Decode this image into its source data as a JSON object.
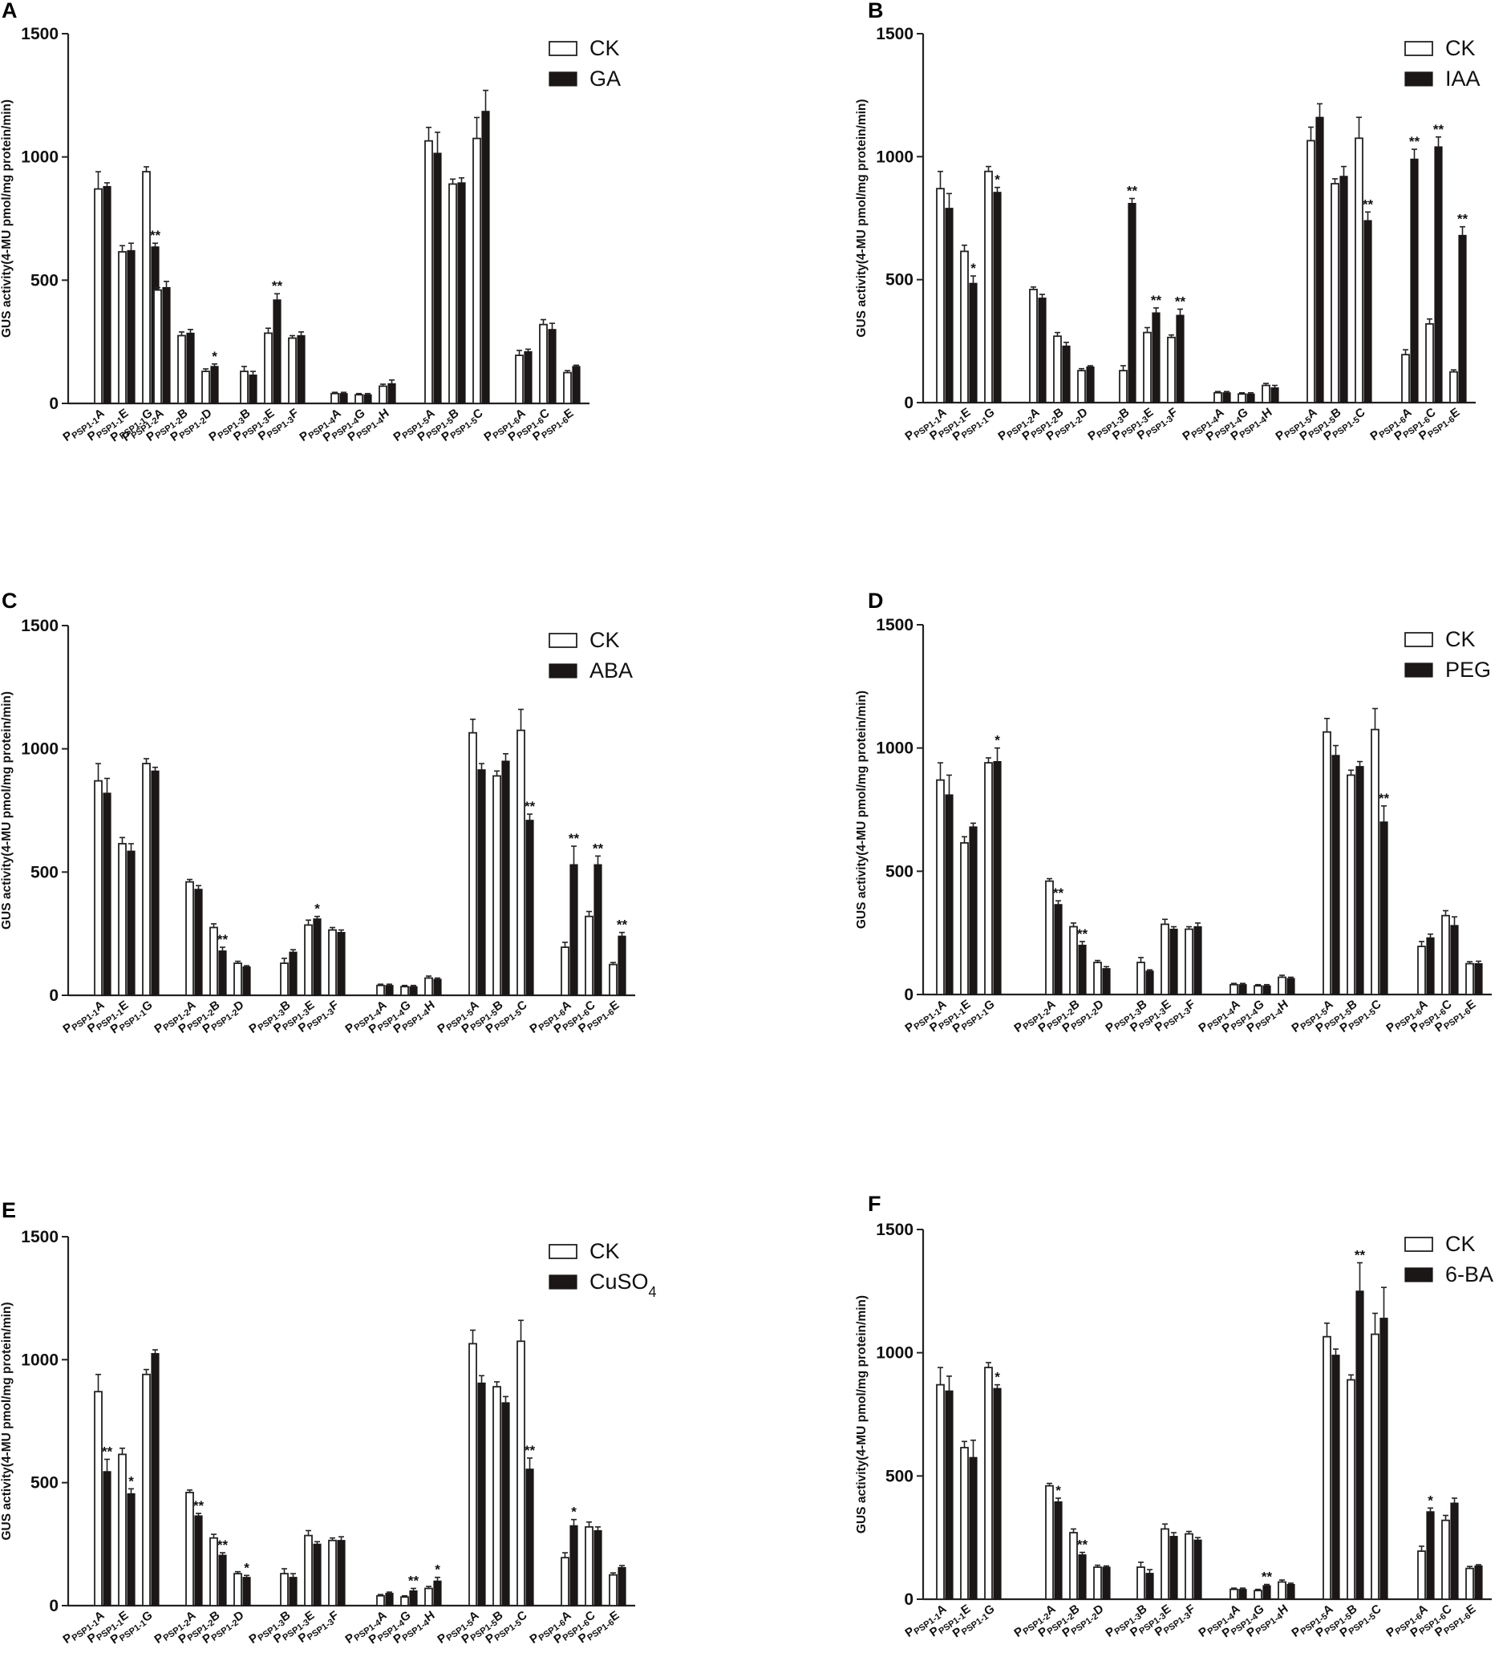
{
  "chart_data": [
    {
      "panel": "A",
      "type": "bar",
      "ylabel": "GUS activity(4-MU pmol/mg protein/min)",
      "ylim": [
        0,
        1500
      ],
      "yticks": [
        0,
        500,
        1000,
        1500
      ],
      "legend": [
        "CK",
        "GA"
      ],
      "legend_position": "top-right",
      "categories": [
        "PSP1-1A",
        "PSP1-1E",
        "PSP1-1G",
        "PSP1-2A",
        "PSP1-2B",
        "PSP1-2D",
        "PSP1-3B",
        "PSP1-3E",
        "PSP1-3F",
        "PSP1-4A",
        "PSP1-4G",
        "PSP1-4H",
        "PSP1-5A",
        "PSP1-5B",
        "PSP1-5C",
        "PSP1-6A",
        "PSP1-6C",
        "PSP1-6E"
      ],
      "series": [
        {
          "name": "CK",
          "values": [
            870,
            615,
            940,
            460,
            275,
            130,
            130,
            285,
            265,
            40,
            35,
            70,
            1065,
            890,
            1075,
            195,
            320,
            125
          ],
          "errors": [
            70,
            25,
            20,
            10,
            15,
            10,
            20,
            20,
            10,
            5,
            5,
            8,
            55,
            20,
            85,
            20,
            20,
            8
          ]
        },
        {
          "name": "GA",
          "values": [
            880,
            620,
            635,
            470,
            285,
            150,
            115,
            420,
            275,
            40,
            35,
            80,
            1015,
            895,
            1185,
            210,
            300,
            150
          ],
          "errors": [
            15,
            30,
            15,
            25,
            15,
            10,
            15,
            25,
            15,
            5,
            5,
            15,
            85,
            20,
            85,
            10,
            25,
            5
          ]
        }
      ],
      "annotations": [
        "",
        "",
        "**",
        "",
        "",
        "*",
        "",
        "**",
        "",
        "",
        "",
        "",
        "",
        "",
        "",
        "",
        "",
        ""
      ]
    },
    {
      "panel": "B",
      "type": "bar",
      "ylabel": "GUS activity(4-MU pmol/mg protein/min)",
      "ylim": [
        0,
        1500
      ],
      "yticks": [
        0,
        500,
        1000,
        1500
      ],
      "legend": [
        "CK",
        "IAA"
      ],
      "legend_position": "top-right",
      "categories": [
        "PSP1-1A",
        "PSP1-1E",
        "PSP1-1G",
        "PSP1-2A",
        "PSP1-2B",
        "PSP1-2D",
        "PSP1-3B",
        "PSP1-3E",
        "PSP1-3F",
        "PSP1-4A",
        "PSP1-4G",
        "PSP1-4H",
        "PSP1-5A",
        "PSP1-5B",
        "PSP1-5C",
        "PSP1-6A",
        "PSP1-6C",
        "PSP1-6E"
      ],
      "series": [
        {
          "name": "CK",
          "values": [
            870,
            615,
            940,
            460,
            270,
            130,
            130,
            285,
            265,
            40,
            35,
            70,
            1065,
            890,
            1075,
            195,
            320,
            125
          ],
          "errors": [
            70,
            25,
            20,
            10,
            15,
            8,
            20,
            20,
            10,
            5,
            5,
            8,
            55,
            20,
            85,
            20,
            20,
            8
          ]
        },
        {
          "name": "IAA",
          "values": [
            790,
            485,
            855,
            425,
            230,
            145,
            810,
            365,
            355,
            40,
            35,
            60,
            1160,
            920,
            740,
            990,
            1040,
            680
          ],
          "errors": [
            60,
            30,
            20,
            15,
            15,
            5,
            20,
            20,
            25,
            5,
            5,
            10,
            55,
            40,
            35,
            40,
            40,
            35
          ]
        }
      ],
      "annotations": [
        "",
        "*",
        "*",
        "",
        "",
        "",
        "**",
        "**",
        "**",
        "",
        "",
        "",
        "",
        "",
        "**",
        "**",
        "**",
        "**"
      ]
    },
    {
      "panel": "C",
      "type": "bar",
      "ylabel": "GUS activity(4-MU pmol/mg protein/min)",
      "ylim": [
        0,
        1500
      ],
      "yticks": [
        0,
        500,
        1000,
        1500
      ],
      "legend": [
        "CK",
        "ABA"
      ],
      "legend_position": "top-right",
      "categories": [
        "PSP1-1A",
        "PSP1-1E",
        "PSP1-1G",
        "PSP1-2A",
        "PSP1-2B",
        "PSP1-2D",
        "PSP1-3B",
        "PSP1-3E",
        "PSP1-3F",
        "PSP1-4A",
        "PSP1-4G",
        "PSP1-4H",
        "PSP1-5A",
        "PSP1-5B",
        "PSP1-5C",
        "PSP1-6A",
        "PSP1-6C",
        "PSP1-6E"
      ],
      "series": [
        {
          "name": "CK",
          "values": [
            870,
            615,
            940,
            460,
            275,
            130,
            130,
            285,
            265,
            40,
            35,
            70,
            1065,
            890,
            1075,
            195,
            320,
            125
          ],
          "errors": [
            70,
            25,
            20,
            10,
            15,
            8,
            20,
            20,
            10,
            5,
            5,
            8,
            55,
            20,
            85,
            20,
            20,
            8
          ]
        },
        {
          "name": "ABA",
          "values": [
            820,
            585,
            910,
            430,
            180,
            115,
            175,
            310,
            255,
            40,
            35,
            65,
            915,
            950,
            710,
            530,
            530,
            240
          ],
          "errors": [
            60,
            30,
            15,
            15,
            15,
            5,
            10,
            10,
            10,
            5,
            5,
            5,
            25,
            30,
            25,
            75,
            35,
            15
          ]
        }
      ],
      "annotations": [
        "",
        "",
        "",
        "",
        "**",
        "",
        "",
        "*",
        "",
        "",
        "",
        "",
        "",
        "",
        "**",
        "**",
        "**",
        "**"
      ]
    },
    {
      "panel": "D",
      "type": "bar",
      "ylabel": "GUS activity(4-MU pmol/mg protein/min)",
      "ylim": [
        0,
        1500
      ],
      "yticks": [
        0,
        500,
        1000,
        1500
      ],
      "legend": [
        "CK",
        "PEG"
      ],
      "legend_position": "top-right",
      "categories": [
        "PSP1-1A",
        "PSP1-1E",
        "PSP1-1G",
        "PSP1-2A",
        "PSP1-2B",
        "PSP1-2D",
        "PSP1-3B",
        "PSP1-3E",
        "PSP1-3F",
        "PSP1-4A",
        "PSP1-4G",
        "PSP1-4H",
        "PSP1-5A",
        "PSP1-5B",
        "PSP1-5C",
        "PSP1-6A",
        "PSP1-6C",
        "PSP1-6E"
      ],
      "series": [
        {
          "name": "CK",
          "values": [
            870,
            615,
            940,
            460,
            275,
            130,
            130,
            285,
            265,
            40,
            35,
            70,
            1065,
            890,
            1075,
            195,
            320,
            125
          ],
          "errors": [
            70,
            25,
            20,
            10,
            15,
            8,
            20,
            20,
            10,
            5,
            5,
            8,
            55,
            20,
            85,
            20,
            20,
            8
          ]
        },
        {
          "name": "PEG",
          "values": [
            810,
            680,
            945,
            365,
            200,
            105,
            95,
            265,
            275,
            40,
            35,
            65,
            970,
            925,
            700,
            230,
            280,
            125
          ],
          "errors": [
            80,
            15,
            55,
            15,
            15,
            8,
            5,
            10,
            15,
            5,
            5,
            5,
            40,
            20,
            65,
            15,
            35,
            10
          ]
        }
      ],
      "annotations": [
        "",
        "",
        "*",
        "**",
        "**",
        "",
        "",
        "",
        "",
        "",
        "",
        "",
        "",
        "",
        "**",
        "",
        "",
        ""
      ]
    },
    {
      "panel": "E",
      "type": "bar",
      "ylabel": "GUS activity(4-MU pmol/mg protein/min)",
      "ylim": [
        0,
        1500
      ],
      "yticks": [
        0,
        500,
        1000,
        1500
      ],
      "legend": [
        "CK",
        "CuSO4"
      ],
      "legend_position": "top-right",
      "categories": [
        "PSP1-1A",
        "PSP1-1E",
        "PSP1-1G",
        "PSP1-2A",
        "PSP1-2B",
        "PSP1-2D",
        "PSP1-3B",
        "PSP1-3E",
        "PSP1-3F",
        "PSP1-4A",
        "PSP1-4G",
        "PSP1-4H",
        "PSP1-5A",
        "PSP1-5B",
        "PSP1-5C",
        "PSP1-6A",
        "PSP1-6C",
        "PSP1-6E"
      ],
      "series": [
        {
          "name": "CK",
          "values": [
            870,
            615,
            940,
            460,
            275,
            130,
            130,
            285,
            265,
            40,
            35,
            70,
            1065,
            890,
            1075,
            195,
            320,
            125
          ],
          "errors": [
            70,
            25,
            20,
            10,
            15,
            8,
            20,
            20,
            10,
            5,
            5,
            8,
            55,
            20,
            85,
            20,
            20,
            8
          ]
        },
        {
          "name": "CuSO4",
          "values": [
            545,
            455,
            1025,
            365,
            205,
            115,
            115,
            250,
            265,
            50,
            60,
            100,
            905,
            825,
            555,
            325,
            305,
            155
          ],
          "errors": [
            50,
            20,
            15,
            10,
            10,
            8,
            15,
            10,
            15,
            5,
            10,
            15,
            30,
            25,
            45,
            25,
            15,
            8
          ]
        }
      ],
      "annotations": [
        "**",
        "*",
        "",
        "**",
        "**",
        "*",
        "",
        "",
        "",
        "",
        "**",
        "*",
        "",
        "",
        "**",
        "*",
        "",
        ""
      ]
    },
    {
      "panel": "F",
      "type": "bar",
      "ylabel": "GUS activity(4-MU pmol/mg protein/min)",
      "ylim": [
        0,
        1500
      ],
      "yticks": [
        0,
        500,
        1000,
        1500
      ],
      "legend": [
        "CK",
        "6-BA"
      ],
      "legend_position": "top-right",
      "categories": [
        "PSP1-1A",
        "PSP1-1E",
        "PSP1-1G",
        "PSP1-2A",
        "PSP1-2B",
        "PSP1-2D",
        "PSP1-3B",
        "PSP1-3E",
        "PSP1-3F",
        "PSP1-4A",
        "PSP1-4G",
        "PSP1-4H",
        "PSP1-5A",
        "PSP1-5B",
        "PSP1-5C",
        "PSP1-6A",
        "PSP1-6C",
        "PSP1-6E"
      ],
      "series": [
        {
          "name": "CK",
          "values": [
            870,
            615,
            940,
            460,
            270,
            130,
            130,
            285,
            265,
            40,
            35,
            70,
            1065,
            890,
            1075,
            195,
            320,
            125
          ],
          "errors": [
            70,
            25,
            20,
            10,
            15,
            8,
            20,
            20,
            10,
            5,
            5,
            8,
            55,
            20,
            85,
            20,
            20,
            8
          ]
        },
        {
          "name": "6-BA",
          "values": [
            845,
            575,
            855,
            395,
            180,
            130,
            105,
            255,
            240,
            40,
            55,
            60,
            990,
            1250,
            1140,
            355,
            390,
            135
          ],
          "errors": [
            60,
            70,
            15,
            15,
            10,
            5,
            15,
            15,
            10,
            5,
            5,
            5,
            25,
            115,
            125,
            15,
            20,
            5
          ]
        }
      ],
      "annotations": [
        "",
        "",
        "*",
        "*",
        "**",
        "",
        "",
        "",
        "",
        "",
        "**",
        "",
        "",
        "**",
        "",
        "*",
        "",
        ""
      ]
    }
  ]
}
